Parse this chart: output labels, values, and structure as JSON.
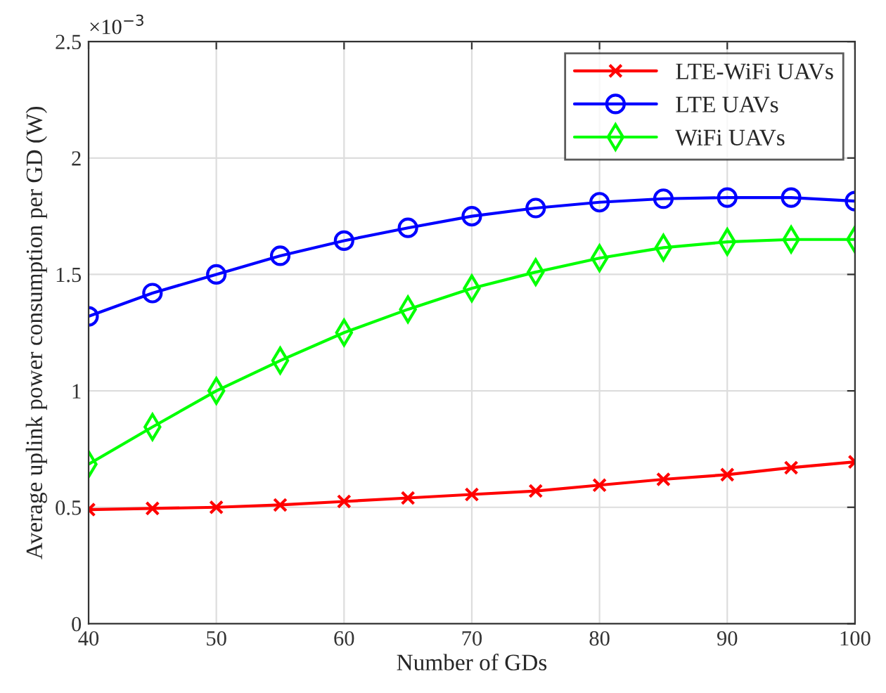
{
  "chart_data": {
    "type": "line",
    "xlabel": "Number of GDs",
    "ylabel": "Average uplink power consumption per GD (W)",
    "annotations": [
      "×10$^{−3}$"
    ],
    "x": [
      40,
      45,
      50,
      55,
      60,
      65,
      70,
      75,
      80,
      85,
      90,
      95,
      100
    ],
    "series": [
      {
        "name": "LTE-WiFi UAVs",
        "color": "#ff0000",
        "marker": "cross",
        "values": [
          0.49,
          0.495,
          0.5,
          0.51,
          0.525,
          0.54,
          0.555,
          0.57,
          0.595,
          0.62,
          0.64,
          0.67,
          0.695
        ]
      },
      {
        "name": "LTE UAVs",
        "color": "#0000ff",
        "marker": "circle",
        "values": [
          1.32,
          1.42,
          1.5,
          1.58,
          1.645,
          1.7,
          1.75,
          1.785,
          1.81,
          1.825,
          1.83,
          1.83,
          1.815
        ]
      },
      {
        "name": "WiFi UAVs",
        "color": "#00ff00",
        "marker": "diamond",
        "values": [
          0.685,
          0.845,
          1.0,
          1.13,
          1.25,
          1.35,
          1.44,
          1.51,
          1.57,
          1.615,
          1.64,
          1.65,
          1.65
        ]
      }
    ],
    "xlim": [
      40,
      100
    ],
    "xticks": [
      40,
      50,
      60,
      70,
      80,
      90,
      100
    ],
    "ylim": [
      0,
      2.5
    ],
    "yticks": [
      0,
      0.5,
      1,
      1.5,
      2,
      2.5
    ],
    "grid": true,
    "legend": "top right",
    "line_style": "solid"
  }
}
